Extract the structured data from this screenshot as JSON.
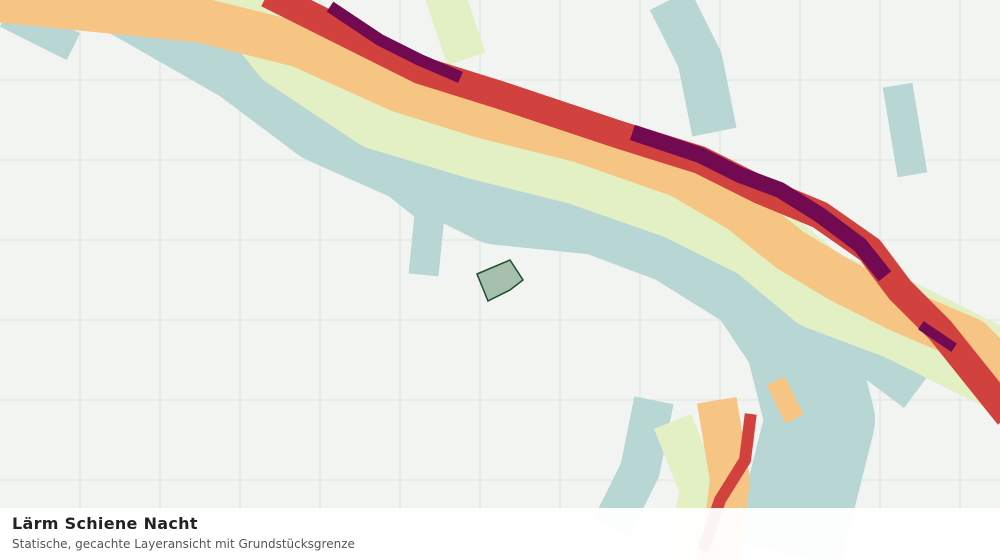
{
  "footer": {
    "title": "Lärm Schiene Nacht",
    "subtitle": "Statische, gecachte Layeransicht mit Grundstücksgrenze"
  }
}
